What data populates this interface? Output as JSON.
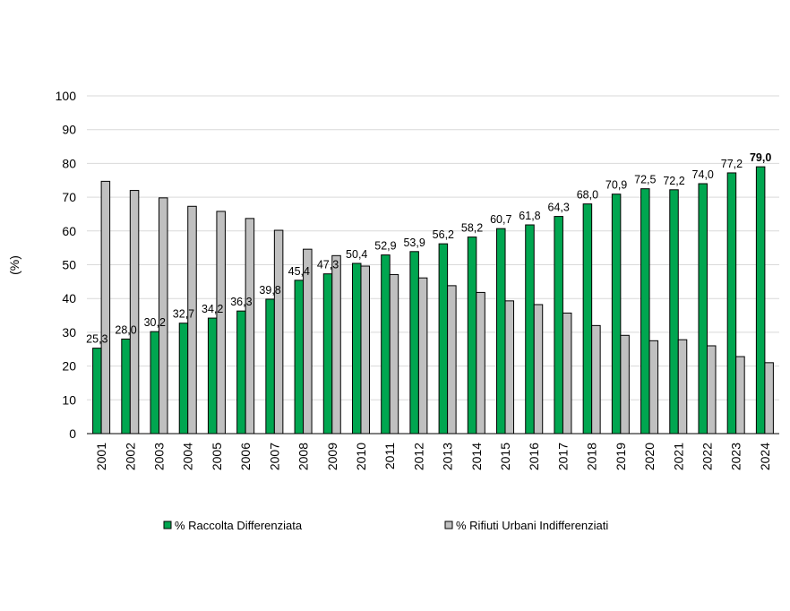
{
  "chart_data": {
    "type": "bar",
    "title": "",
    "xlabel": "",
    "ylabel": "(%)",
    "ylim": [
      0,
      100
    ],
    "yticks": [
      0,
      10,
      20,
      30,
      40,
      50,
      60,
      70,
      80,
      90,
      100
    ],
    "grid": true,
    "legend_position": "bottom",
    "categories": [
      "2001",
      "2002",
      "2003",
      "2004",
      "2005",
      "2006",
      "2007",
      "2008",
      "2009",
      "2010",
      "2011",
      "2012",
      "2013",
      "2014",
      "2015",
      "2016",
      "2017",
      "2018",
      "2019",
      "2020",
      "2021",
      "2022",
      "2023",
      "2024"
    ],
    "series": [
      {
        "name": "% Raccolta Differenziata",
        "color": "#00a650",
        "values": [
          25.3,
          28.0,
          30.2,
          32.7,
          34.2,
          36.3,
          39.8,
          45.4,
          47.3,
          50.4,
          52.9,
          53.9,
          56.2,
          58.2,
          60.7,
          61.8,
          64.3,
          68.0,
          70.9,
          72.5,
          72.2,
          74.0,
          77.2,
          79.0
        ],
        "labels": [
          "25,3",
          "28,0",
          "30,2",
          "32,7",
          "34,2",
          "36,3",
          "39,8",
          "45,4",
          "47,3",
          "50,4",
          "52,9",
          "53,9",
          "56,2",
          "58,2",
          "60,7",
          "61,8",
          "64,3",
          "68,0",
          "70,9",
          "72,5",
          "72,2",
          "74,0",
          "77,2",
          "79,0"
        ]
      },
      {
        "name": "% Rifiuti Urbani Indifferenziati",
        "color": "#c0c0c0",
        "values": [
          74.7,
          72.0,
          69.8,
          67.3,
          65.8,
          63.7,
          60.2,
          54.6,
          52.7,
          49.6,
          47.1,
          46.1,
          43.8,
          41.8,
          39.3,
          38.2,
          35.7,
          32.0,
          29.1,
          27.5,
          27.8,
          26.0,
          22.8,
          21.0
        ]
      }
    ]
  }
}
